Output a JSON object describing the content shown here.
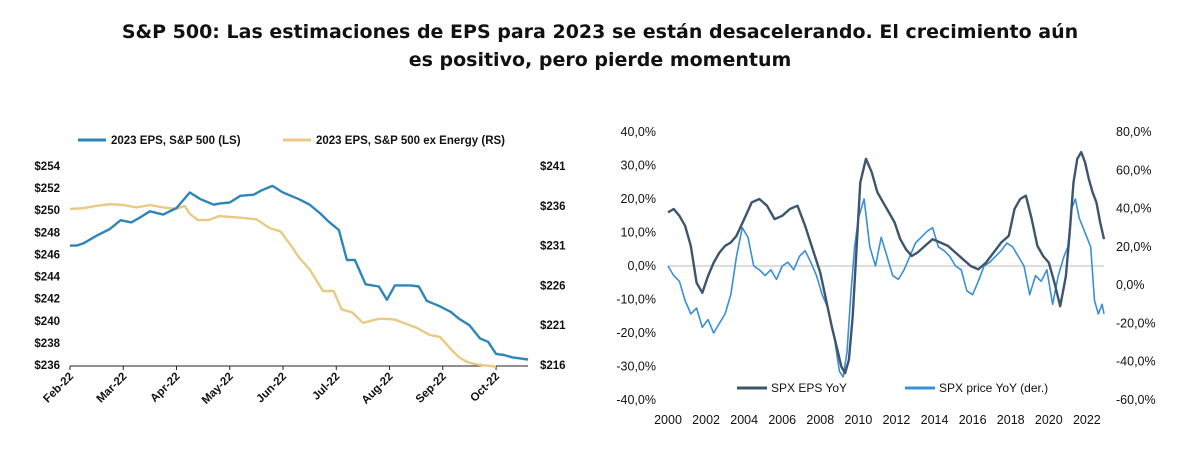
{
  "title_line1": "S&P 500: Las estimaciones de EPS para 2023 se están desacelerando. El crecimiento aún",
  "title_line2": "es positivo, pero pierde momentum",
  "colors": {
    "blue": "#2e86b8",
    "tan": "#e8ca84",
    "dark": "#3d566e",
    "light_blue": "#3a8fd6"
  },
  "chart_data": [
    {
      "type": "line",
      "title": "",
      "x_tick_labels": [
        "Feb-22",
        "Mar-22",
        "Apr-22",
        "May-22",
        "Jun-22",
        "Jul-22",
        "Aug-22",
        "Sep-22",
        "Oct-22"
      ],
      "y_left_ticks": [
        "$254",
        "$252",
        "$250",
        "$248",
        "$246",
        "$244",
        "$242",
        "$240",
        "$238",
        "$236"
      ],
      "y_left_range": [
        236,
        254
      ],
      "y_right_ticks": [
        "$241",
        "$236",
        "$231",
        "$226",
        "$221",
        "$216"
      ],
      "y_right_range": [
        216,
        241
      ],
      "legend_position": "top",
      "grid": false,
      "x_index_range": [
        0,
        8.6
      ],
      "series": [
        {
          "name": "2023 EPS, S&P 500 (LS)",
          "axis": "left",
          "color_key": "blue",
          "x": [
            0,
            0.12,
            0.25,
            0.5,
            0.75,
            0.95,
            1.15,
            1.3,
            1.5,
            1.75,
            2.0,
            2.25,
            2.45,
            2.55,
            2.7,
            2.8,
            3.0,
            3.2,
            3.45,
            3.6,
            3.8,
            4.0,
            4.15,
            4.3,
            4.5,
            4.7,
            4.85,
            5.05,
            5.2,
            5.35,
            5.55,
            5.8,
            5.95,
            6.1,
            6.25,
            6.4,
            6.55,
            6.7,
            6.85,
            6.95,
            7.15,
            7.3,
            7.5,
            7.7,
            7.85,
            8.0,
            8.15,
            8.3,
            8.45,
            8.6
          ],
          "y": [
            246.8,
            246.8,
            247.0,
            247.7,
            248.3,
            249.1,
            248.9,
            249.3,
            249.9,
            249.6,
            250.2,
            251.6,
            251.0,
            250.8,
            250.5,
            250.6,
            250.7,
            251.3,
            251.4,
            251.8,
            252.2,
            251.6,
            251.3,
            251.0,
            250.5,
            249.7,
            249.0,
            248.2,
            245.5,
            245.5,
            243.3,
            243.1,
            241.9,
            243.2,
            243.2,
            243.2,
            243.1,
            241.8,
            241.5,
            241.3,
            240.8,
            240.2,
            239.6,
            238.4,
            238.1,
            237.0,
            236.9,
            236.7,
            236.6,
            236.5
          ]
        },
        {
          "name": "2023 EPS, S&P 500 ex Energy (RS)",
          "axis": "right",
          "color_key": "tan",
          "x": [
            0,
            0.25,
            0.5,
            0.75,
            1.0,
            1.25,
            1.5,
            1.75,
            2.0,
            2.15,
            2.25,
            2.4,
            2.6,
            2.8,
            3.0,
            3.2,
            3.5,
            3.75,
            3.95,
            4.15,
            4.3,
            4.5,
            4.75,
            4.95,
            5.1,
            5.3,
            5.5,
            5.8,
            5.9,
            6.1,
            6.3,
            6.5,
            6.75,
            6.95,
            7.15,
            7.3,
            7.45,
            7.6,
            7.72,
            7.85,
            8.0
          ],
          "y": [
            235.6,
            235.7,
            236.0,
            236.2,
            236.1,
            235.8,
            236.1,
            235.8,
            235.6,
            236.0,
            235.0,
            234.2,
            234.2,
            234.7,
            234.6,
            234.5,
            234.3,
            233.2,
            232.8,
            231.0,
            229.5,
            228.0,
            225.3,
            225.3,
            223.0,
            222.6,
            221.3,
            221.8,
            221.8,
            221.7,
            221.2,
            220.7,
            219.8,
            219.5,
            218.0,
            217.0,
            216.4,
            216.1,
            216.0,
            215.9,
            215.8
          ]
        }
      ]
    },
    {
      "type": "line",
      "title": "",
      "x_tick_labels": [
        "2000",
        "2002",
        "2004",
        "2006",
        "2008",
        "2010",
        "2012",
        "2014",
        "2016",
        "2018",
        "2020",
        "2022"
      ],
      "x_range": [
        2000,
        2022.9
      ],
      "y_left_ticks": [
        "40,0%",
        "30,0%",
        "20,0%",
        "10,0%",
        "0,0%",
        "-10,0%",
        "-20,0%",
        "-30,0%",
        "-40,0%"
      ],
      "y_left_range": [
        -40,
        40
      ],
      "y_right_ticks": [
        "80,0%",
        "60,0%",
        "40,0%",
        "20,0%",
        "0,0%",
        "-20,0%",
        "-40,0%",
        "-60,0%"
      ],
      "y_right_range": [
        -60,
        80
      ],
      "legend_position": "bottom",
      "grid": false,
      "series": [
        {
          "name": "SPX EPS YoY",
          "axis": "left",
          "color_key": "dark",
          "x": [
            2000,
            2000.3,
            2000.6,
            2000.9,
            2001.2,
            2001.5,
            2001.8,
            2002.1,
            2002.4,
            2002.7,
            2003.0,
            2003.3,
            2003.6,
            2004.0,
            2004.4,
            2004.8,
            2005.2,
            2005.6,
            2006.0,
            2006.4,
            2006.8,
            2007.2,
            2007.6,
            2008.0,
            2008.3,
            2008.6,
            2008.9,
            2009.1,
            2009.3,
            2009.5,
            2009.7,
            2009.9,
            2010.1,
            2010.4,
            2010.7,
            2011.0,
            2011.3,
            2011.6,
            2011.9,
            2012.2,
            2012.5,
            2012.8,
            2013.1,
            2013.5,
            2013.9,
            2014.3,
            2014.7,
            2015.1,
            2015.5,
            2015.9,
            2016.3,
            2016.7,
            2017.1,
            2017.5,
            2017.9,
            2018.2,
            2018.5,
            2018.8,
            2019.1,
            2019.4,
            2019.7,
            2020.0,
            2020.3,
            2020.6,
            2020.9,
            2021.1,
            2021.3,
            2021.5,
            2021.7,
            2021.9,
            2022.1,
            2022.3,
            2022.5,
            2022.7,
            2022.9
          ],
          "y": [
            16,
            17,
            15,
            12,
            6,
            -5,
            -8,
            -3,
            1,
            4,
            6,
            7,
            9,
            14,
            19,
            20,
            18,
            14,
            15,
            17,
            18,
            12,
            5,
            -2,
            -10,
            -18,
            -25,
            -30,
            -32,
            -28,
            -15,
            5,
            25,
            32,
            28,
            22,
            19,
            16,
            13,
            8,
            5,
            3,
            4,
            6,
            8,
            7,
            6,
            4,
            2,
            0,
            -1,
            1,
            4,
            7,
            9,
            17,
            20,
            21,
            14,
            6,
            3,
            1,
            -5,
            -12,
            -3,
            10,
            25,
            32,
            34,
            31,
            26,
            22,
            19,
            13,
            8
          ]
        },
        {
          "name": "SPX price YoY (der.)",
          "axis": "right",
          "color_key": "light_blue",
          "x": [
            2000,
            2000.3,
            2000.6,
            2000.9,
            2001.2,
            2001.5,
            2001.8,
            2002.1,
            2002.4,
            2002.7,
            2003.0,
            2003.3,
            2003.6,
            2003.9,
            2004.2,
            2004.5,
            2004.8,
            2005.1,
            2005.4,
            2005.7,
            2006.0,
            2006.3,
            2006.6,
            2006.9,
            2007.2,
            2007.5,
            2007.8,
            2008.1,
            2008.4,
            2008.7,
            2009.0,
            2009.2,
            2009.4,
            2009.6,
            2009.8,
            2010.0,
            2010.3,
            2010.6,
            2010.9,
            2011.2,
            2011.5,
            2011.8,
            2012.1,
            2012.4,
            2012.7,
            2013.0,
            2013.3,
            2013.6,
            2013.9,
            2014.2,
            2014.5,
            2014.8,
            2015.1,
            2015.4,
            2015.7,
            2016.0,
            2016.3,
            2016.6,
            2016.9,
            2017.2,
            2017.5,
            2017.8,
            2018.1,
            2018.4,
            2018.7,
            2019.0,
            2019.3,
            2019.6,
            2019.9,
            2020.2,
            2020.5,
            2020.8,
            2021.0,
            2021.2,
            2021.4,
            2021.6,
            2021.8,
            2022.0,
            2022.2,
            2022.4,
            2022.6,
            2022.8,
            2022.9
          ],
          "y": [
            10,
            5,
            2,
            -8,
            -15,
            -12,
            -22,
            -18,
            -25,
            -20,
            -15,
            -5,
            15,
            30,
            25,
            10,
            8,
            5,
            8,
            3,
            10,
            12,
            8,
            15,
            18,
            12,
            5,
            -5,
            -12,
            -25,
            -45,
            -48,
            -35,
            -5,
            20,
            35,
            45,
            20,
            10,
            25,
            15,
            5,
            3,
            8,
            15,
            22,
            25,
            28,
            30,
            20,
            18,
            15,
            10,
            8,
            -3,
            -5,
            2,
            10,
            12,
            15,
            18,
            22,
            20,
            15,
            10,
            -5,
            5,
            2,
            8,
            -10,
            5,
            15,
            20,
            40,
            45,
            35,
            30,
            25,
            20,
            -8,
            -15,
            -10,
            -15
          ]
        }
      ]
    }
  ]
}
